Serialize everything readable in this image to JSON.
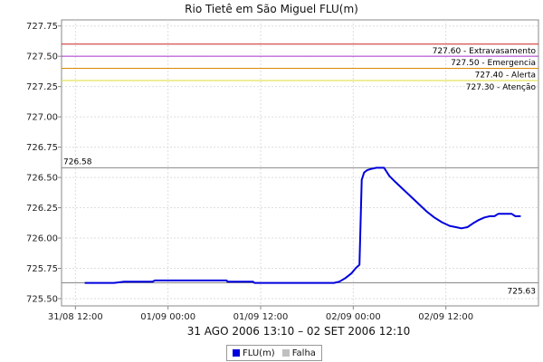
{
  "chart_data": {
    "type": "line",
    "title": "Rio Tietê em São Miguel FLU(m)",
    "subtitle": "31 AGO 2006 13:10 – 02 SET 2006 12:10",
    "xlabel": "",
    "ylabel": "",
    "x_ticks": [
      "31/08 12:00",
      "01/09 00:00",
      "01/09 12:00",
      "02/09 00:00",
      "02/09 12:00"
    ],
    "x_tick_hours": [
      0,
      12,
      24,
      36,
      48
    ],
    "ylim": [
      725.44,
      727.8
    ],
    "y_ticks": [
      725.5,
      725.75,
      726.0,
      726.25,
      726.5,
      726.75,
      727.0,
      727.25,
      727.5,
      727.75
    ],
    "y_tick_labels": [
      "725.50",
      "725.75",
      "726.00",
      "726.25",
      "726.50",
      "726.75",
      "727.00",
      "727.25",
      "727.50",
      "727.75"
    ],
    "grid": true,
    "legend_position": "bottom",
    "series": [
      {
        "name": "FLU(m)",
        "color": "#0000dd",
        "points": [
          [
            1.2,
            725.63
          ],
          [
            3,
            725.63
          ],
          [
            5,
            725.63
          ],
          [
            6.3,
            725.64
          ],
          [
            8,
            725.64
          ],
          [
            10,
            725.64
          ],
          [
            10.3,
            725.65
          ],
          [
            13,
            725.65
          ],
          [
            16,
            725.65
          ],
          [
            18,
            725.65
          ],
          [
            19.6,
            725.65
          ],
          [
            19.7,
            725.64
          ],
          [
            22,
            725.64
          ],
          [
            23,
            725.64
          ],
          [
            23.2,
            725.63
          ],
          [
            26,
            725.63
          ],
          [
            29,
            725.63
          ],
          [
            32,
            725.63
          ],
          [
            33.5,
            725.63
          ],
          [
            34.2,
            725.64
          ],
          [
            35,
            725.67
          ],
          [
            35.8,
            725.71
          ],
          [
            36.3,
            725.75
          ],
          [
            36.8,
            725.78
          ],
          [
            37.1,
            726.48
          ],
          [
            37.4,
            726.54
          ],
          [
            37.8,
            726.56
          ],
          [
            38.3,
            726.57
          ],
          [
            39,
            726.58
          ],
          [
            40,
            726.58
          ],
          [
            40.3,
            726.55
          ],
          [
            40.7,
            726.51
          ],
          [
            41.5,
            726.46
          ],
          [
            42.5,
            726.4
          ],
          [
            43.5,
            726.34
          ],
          [
            44.5,
            726.28
          ],
          [
            45.5,
            726.22
          ],
          [
            46.5,
            726.17
          ],
          [
            47.5,
            726.13
          ],
          [
            48.5,
            726.1
          ],
          [
            49.3,
            726.09
          ],
          [
            50,
            726.08
          ],
          [
            50.8,
            726.09
          ],
          [
            51.5,
            726.12
          ],
          [
            52.3,
            726.15
          ],
          [
            53,
            726.17
          ],
          [
            53.7,
            726.18
          ],
          [
            54.3,
            726.18
          ],
          [
            54.8,
            726.2
          ],
          [
            55.5,
            726.2
          ],
          [
            56.5,
            726.2
          ],
          [
            57,
            726.18
          ],
          [
            57.7,
            726.18
          ]
        ]
      },
      {
        "name": "Falha",
        "color": "#c0c0c0",
        "points": []
      }
    ],
    "reference_lines": [
      {
        "value": 727.6,
        "label": "727.60 - Extravasamento",
        "color": "#cc2222"
      },
      {
        "value": 727.5,
        "label": "727.50 - Emergencia",
        "color": "#aa33cc"
      },
      {
        "value": 727.4,
        "label": "727.40 - Alerta",
        "color": "#dd8800"
      },
      {
        "value": 727.3,
        "label": "727.30 - Atenção",
        "color": "#dddd33"
      }
    ],
    "extreme_lines": [
      {
        "value": 726.58,
        "label": "726.58",
        "color": "#888888",
        "label_side": "left"
      },
      {
        "value": 725.63,
        "label": "725.63",
        "color": "#888888",
        "label_side": "right"
      }
    ]
  }
}
